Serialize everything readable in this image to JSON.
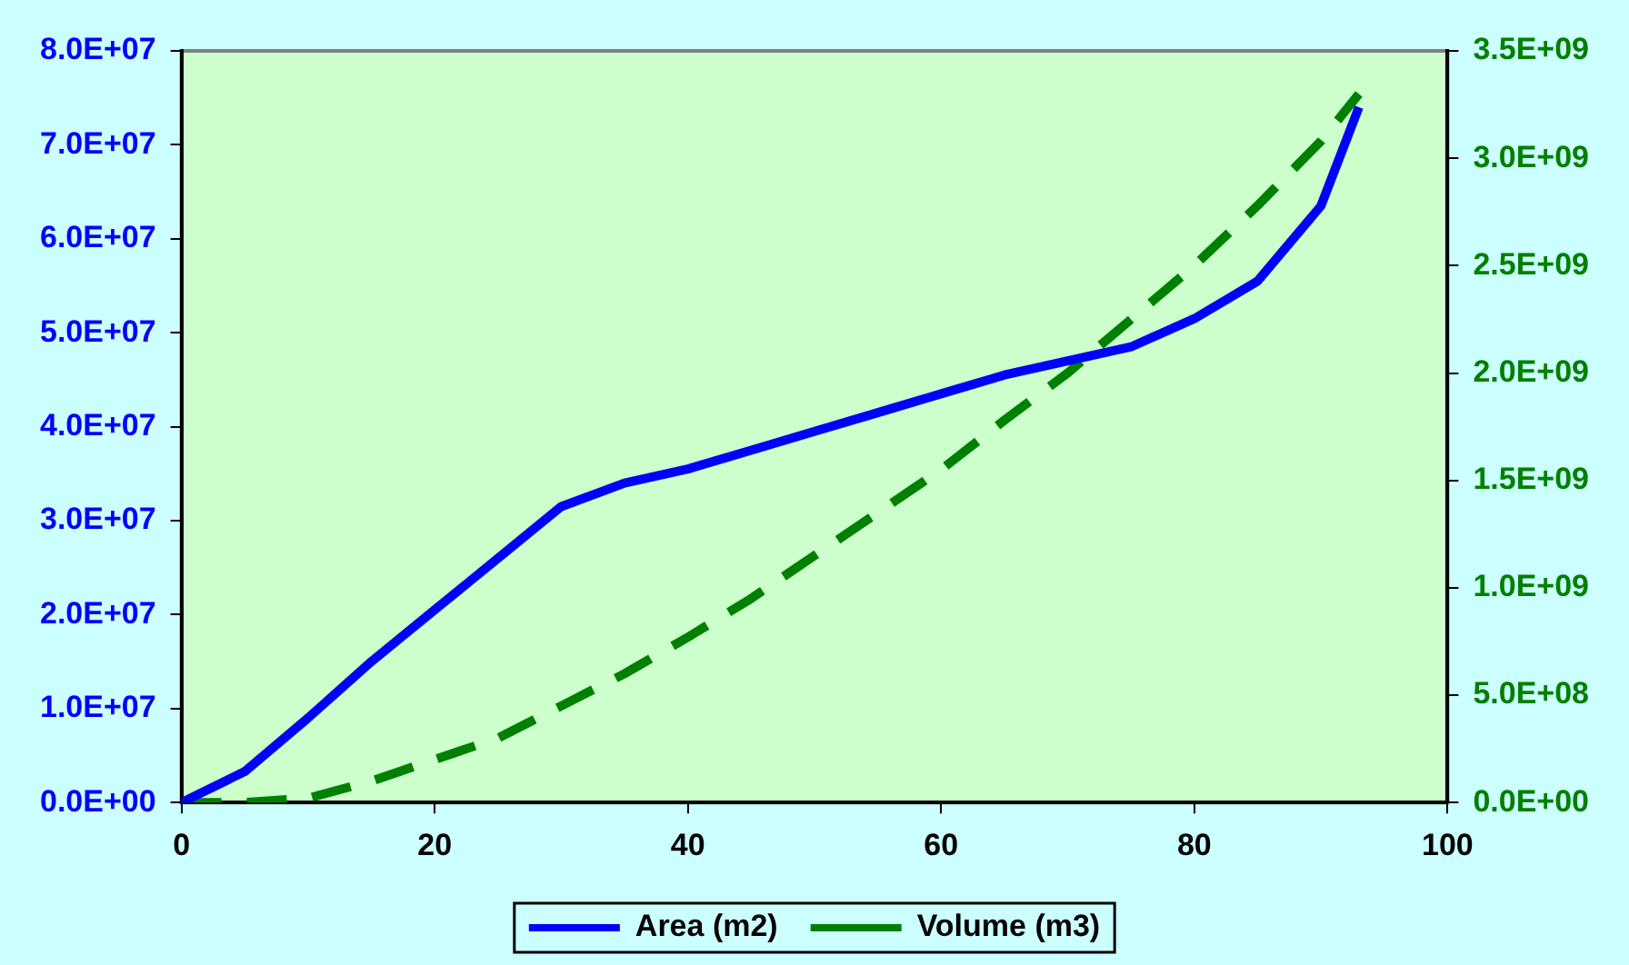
{
  "chart_data": {
    "type": "line",
    "x": [
      0,
      5,
      10,
      15,
      20,
      25,
      30,
      35,
      40,
      45,
      50,
      55,
      60,
      65,
      70,
      75,
      80,
      85,
      90,
      93
    ],
    "series": [
      {
        "name": "Area (m2)",
        "color": "#0000ff",
        "line_style": "solid",
        "values": [
          0,
          3300000,
          9000000,
          15000000,
          20500000,
          26000000,
          31500000,
          34000000,
          35500000,
          37500000,
          39500000,
          41500000,
          43500000,
          45500000,
          47000000,
          48500000,
          51500000,
          55500000,
          63500000,
          74000000
        ]
      },
      {
        "name": "Volume (m3)",
        "color": "#008000",
        "line_style": "dashed",
        "axis": "y2",
        "values": [
          0,
          0,
          20000000,
          100000000,
          200000000,
          300000000,
          450000000,
          600000000,
          770000000,
          950000000,
          1150000000,
          1350000000,
          1550000000,
          1780000000,
          2000000000,
          2250000000,
          2500000000,
          2780000000,
          3080000000,
          3300000000
        ]
      }
    ],
    "xlim": [
      0,
      100
    ],
    "xticks": [
      0,
      20,
      40,
      60,
      80,
      100
    ],
    "ylim": [
      0,
      80000000
    ],
    "yticks": [
      {
        "value": 0,
        "label": "0.0E+00"
      },
      {
        "value": 10000000,
        "label": "1.0E+07"
      },
      {
        "value": 20000000,
        "label": "2.0E+07"
      },
      {
        "value": 30000000,
        "label": "3.0E+07"
      },
      {
        "value": 40000000,
        "label": "4.0E+07"
      },
      {
        "value": 50000000,
        "label": "5.0E+07"
      },
      {
        "value": 60000000,
        "label": "6.0E+07"
      },
      {
        "value": 70000000,
        "label": "7.0E+07"
      },
      {
        "value": 80000000,
        "label": "8.0E+07"
      }
    ],
    "y2lim": [
      0,
      3500000000
    ],
    "y2ticks": [
      {
        "value": 0,
        "label": "0.0E+00"
      },
      {
        "value": 500000000,
        "label": "5.0E+08"
      },
      {
        "value": 1000000000,
        "label": "1.0E+09"
      },
      {
        "value": 1500000000,
        "label": "1.5E+09"
      },
      {
        "value": 2000000000,
        "label": "2.0E+09"
      },
      {
        "value": 2500000000,
        "label": "2.5E+09"
      },
      {
        "value": 3000000000,
        "label": "3.0E+09"
      },
      {
        "value": 3500000000,
        "label": "3.5E+09"
      }
    ],
    "grid": false,
    "legend": "bottom",
    "marker": "none"
  }
}
